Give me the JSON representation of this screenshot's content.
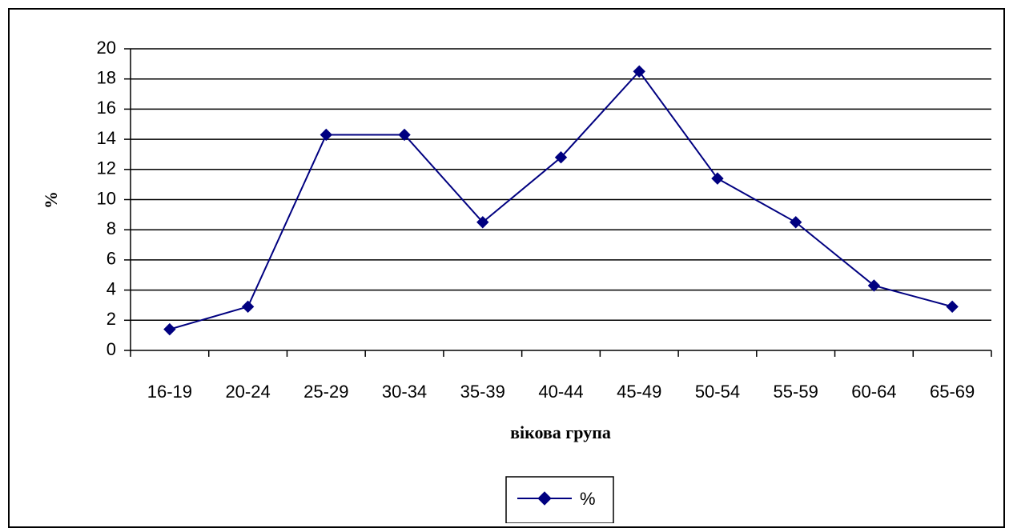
{
  "chart_data": {
    "type": "line",
    "xlabel": "вікова група",
    "ylabel": "%",
    "categories": [
      "16-19",
      "20-24",
      "25-29",
      "30-34",
      "35-39",
      "40-44",
      "45-49",
      "50-54",
      "55-59",
      "60-64",
      "65-69"
    ],
    "series": [
      {
        "name": "%",
        "values": [
          1.4,
          2.9,
          14.3,
          14.3,
          8.5,
          12.8,
          18.5,
          11.4,
          8.5,
          4.3,
          2.9
        ],
        "color": "#000080"
      }
    ],
    "ylim": [
      0,
      20
    ],
    "yticks": [
      0,
      2,
      4,
      6,
      8,
      10,
      12,
      14,
      16,
      18,
      20
    ],
    "grid": "horizontal",
    "legend": "bottom-center"
  }
}
